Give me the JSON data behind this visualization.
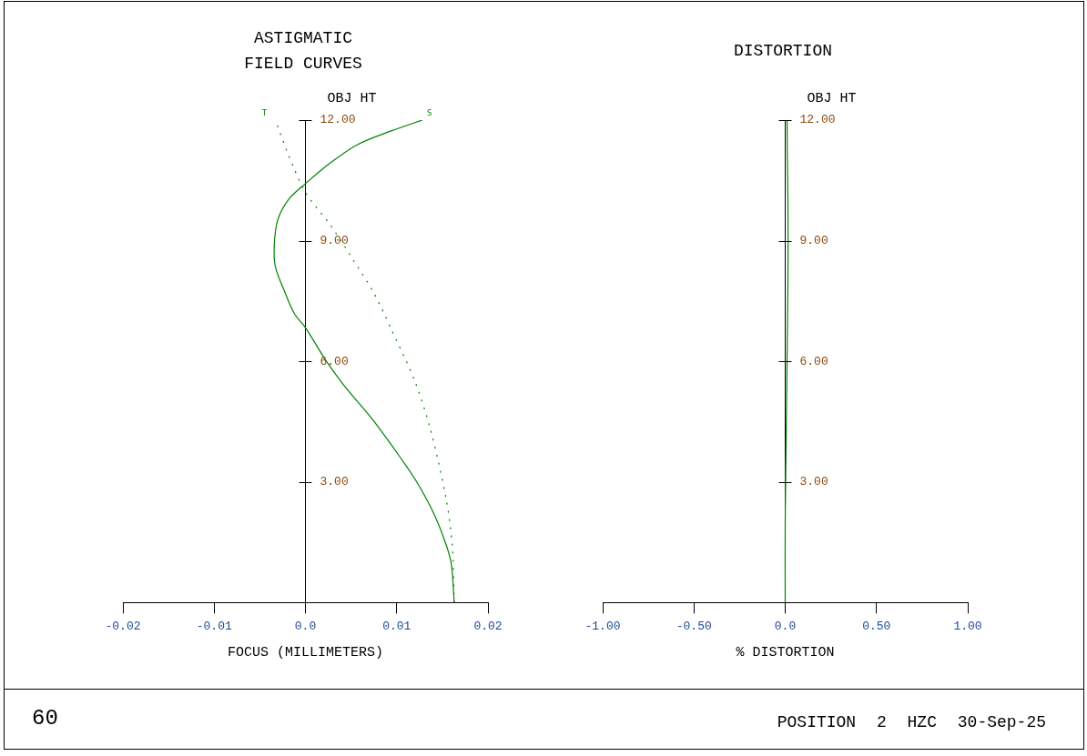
{
  "chart_data": [
    {
      "type": "line",
      "title": "ASTIGMATIC FIELD CURVES",
      "xlabel": "FOCUS (MILLIMETERS)",
      "ylabel": "OBJ HT",
      "series": [
        {
          "name": "T",
          "color": "#008000",
          "line_style": "dotted",
          "x": [
            0.0163,
            0.0161,
            0.0154,
            0.0137,
            0.012,
            0.0094,
            0.0075,
            0.0053,
            0.0027,
            0,
            -0.0018,
            -0.0033
          ],
          "values": [
            0,
            1.4,
            2.6,
            4.3,
            5.5,
            6.8,
            7.7,
            8.5,
            9.4,
            10.2,
            11.1,
            12
          ]
        },
        {
          "name": "S",
          "color": "#008000",
          "line_style": "solid",
          "x": [
            0.0163,
            0.016,
            0.0154,
            0.0141,
            0.0122,
            0.0103,
            0.0073,
            0.0042,
            0.0023,
            0,
            -0.0012,
            -0.0022,
            -0.0033,
            -0.0034,
            -0.003,
            -0.0018,
            0,
            0.0027,
            0.0057,
            0.0094,
            0.0128
          ],
          "values": [
            0,
            0.94,
            1.45,
            2.2,
            3,
            3.64,
            4.57,
            5.41,
            6,
            6.84,
            7.18,
            7.69,
            8.36,
            8.95,
            9.54,
            10.04,
            10.42,
            10.93,
            11.39,
            11.73,
            12
          ]
        }
      ],
      "xlim": [
        -0.02,
        0.02
      ],
      "xticks": [
        -0.02,
        -0.01,
        {
          "value": 0,
          "label": "0.0"
        },
        0.01,
        0.02
      ],
      "ylim": [
        0,
        12
      ],
      "yticks": [
        {
          "value": 3,
          "label": "3.00"
        },
        {
          "value": 6,
          "label": "6.00"
        },
        {
          "value": 9,
          "label": "9.00"
        },
        {
          "value": 12,
          "label": "12.00"
        }
      ],
      "grid": false,
      "marker": "none",
      "annotations": [
        "60",
        "POSITION 2 HZC 30-Sep-25"
      ]
    },
    {
      "type": "line",
      "title": "DISTORTION",
      "xlabel": "% DISTORTION",
      "ylabel": "OBJ HT",
      "series": [
        {
          "color": "#008000",
          "line_style": "solid",
          "x": [
            0,
            0,
            0.005,
            0.01,
            0.015,
            0.015,
            0.012,
            0.01
          ],
          "values": [
            0,
            2,
            4,
            6,
            8,
            10,
            11,
            12
          ]
        }
      ],
      "xlim": [
        -1,
        1
      ],
      "xticks": [
        {
          "value": -1,
          "label": "-1.00"
        },
        {
          "value": -0.5,
          "label": "-0.50"
        },
        {
          "value": 0,
          "label": "0.0"
        },
        {
          "value": 0.5,
          "label": "0.50"
        },
        {
          "value": 1,
          "label": "1.00"
        }
      ],
      "ylim": [
        0,
        12
      ],
      "yticks": [
        {
          "value": 3,
          "label": "3.00"
        },
        {
          "value": 6,
          "label": "6.00"
        },
        {
          "value": 9,
          "label": "9.00"
        },
        {
          "value": 12,
          "label": "12.00"
        }
      ],
      "grid": false,
      "marker": "none"
    }
  ]
}
